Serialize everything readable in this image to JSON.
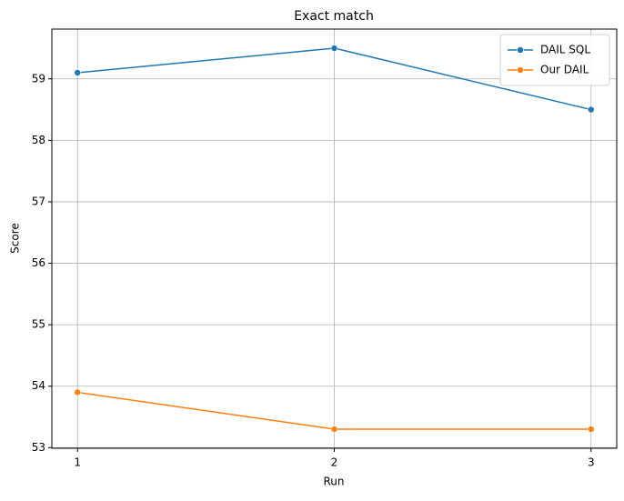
{
  "chart_data": {
    "type": "line",
    "title": "Exact match",
    "x_label": "Run",
    "y_label": "Score",
    "x": [
      1,
      2,
      3
    ],
    "xlim": [
      0.9,
      3.1
    ],
    "xticks": [
      1,
      2,
      3
    ],
    "ylim": [
      52.99,
      59.81
    ],
    "yticks": [
      53,
      54,
      55,
      56,
      57,
      58,
      59
    ],
    "grid": true,
    "legend": "upper right",
    "series": [
      {
        "name": "DAIL SQL",
        "color": "#1f77b4",
        "values": [
          59.1,
          59.5,
          58.5
        ]
      },
      {
        "name": "Our DAIL",
        "color": "#ff7f0e",
        "values": [
          53.9,
          53.3,
          53.3
        ]
      }
    ]
  }
}
